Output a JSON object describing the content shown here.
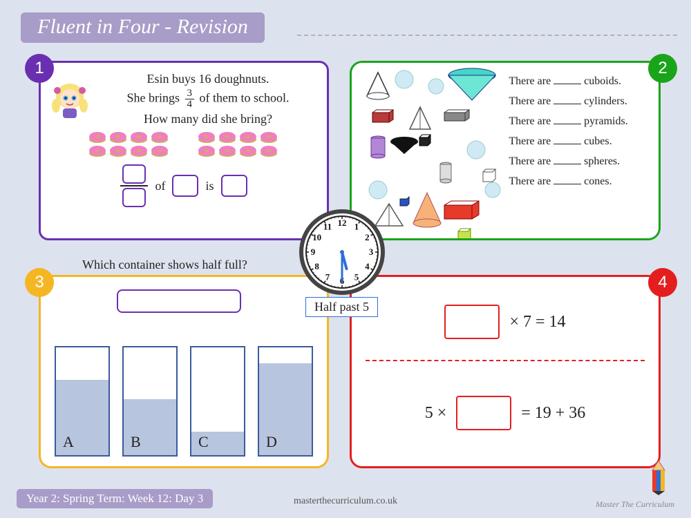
{
  "title": "Fluent in Four - Revision",
  "badges": {
    "b1": "1",
    "b2": "2",
    "b3": "3",
    "b4": "4"
  },
  "panel1": {
    "line1": "Esin buys 16 doughnuts.",
    "line2a": "She brings",
    "frac_n": "3",
    "frac_d": "4",
    "line2b": "of them to school.",
    "line3": "How many did she bring?",
    "of": "of",
    "is": "is"
  },
  "panel2": {
    "prefix": "There are",
    "items": [
      "cuboids.",
      "cylinders.",
      "pyramids.",
      "cubes.",
      "spheres.",
      "cones."
    ]
  },
  "panel3": {
    "question": "Which container shows half full?",
    "containers": [
      {
        "label": "A",
        "fill": 0.7
      },
      {
        "label": "B",
        "fill": 0.52
      },
      {
        "label": "C",
        "fill": 0.22
      },
      {
        "label": "D",
        "fill": 0.85
      }
    ]
  },
  "panel4": {
    "eq1_right": "× 7 = 14",
    "eq2_left": "5 ×",
    "eq2_right": "= 19 + 36"
  },
  "clock": {
    "label": "Half past 5",
    "hour": 5,
    "minute": 30
  },
  "footer": {
    "left": "Year 2: Spring Term: Week 12: Day 3",
    "mid": "masterthecurriculum.co.uk",
    "right": "Master The Curriculum"
  },
  "colors": {
    "bg": "#dce3ee",
    "purple": "#6a2fb0",
    "green": "#1aa41a",
    "yellow": "#f5b623",
    "red": "#e41e1e",
    "lav": "#a89cc8"
  }
}
